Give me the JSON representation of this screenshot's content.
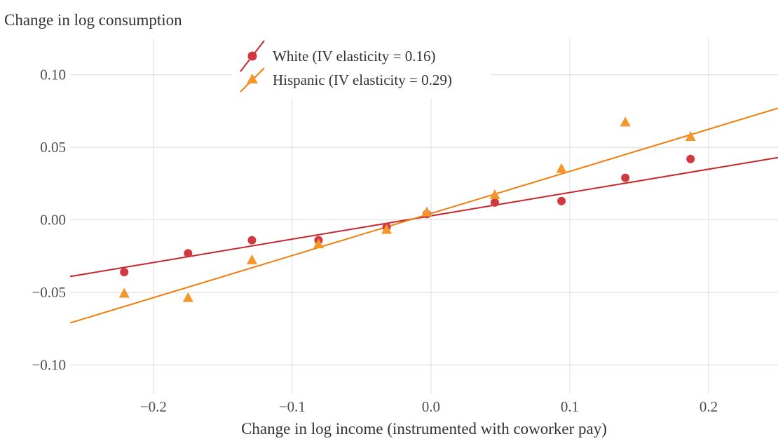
{
  "chart_data": {
    "type": "scatter",
    "title": "",
    "ylabel": "Change in log consumption",
    "xlabel": "Change in log income (instrumented with coworker pay)",
    "xlim": [
      -0.26,
      0.25
    ],
    "ylim": [
      -0.12,
      0.125
    ],
    "xticks": [
      -0.2,
      -0.1,
      0.0,
      0.1,
      0.2
    ],
    "xtick_labels": [
      "−0.2",
      "−0.1",
      "0.0",
      "0.1",
      "0.2"
    ],
    "yticks": [
      0.1,
      0.05,
      0.0,
      -0.05,
      -0.1
    ],
    "ytick_labels": [
      "0.10",
      "0.05",
      "0.00",
      "−0.05",
      "−0.10"
    ],
    "grid": true,
    "legend_position": "top-center",
    "series": [
      {
        "name": "White (IV elasticity = 0.16)",
        "marker": "circle",
        "color": "#d0393f",
        "line_color": "#c8262d",
        "x": [
          -0.221,
          -0.175,
          -0.129,
          -0.081,
          -0.032,
          -0.003,
          0.046,
          0.094,
          0.14,
          0.187
        ],
        "y": [
          -0.036,
          -0.023,
          -0.014,
          -0.014,
          -0.005,
          0.004,
          0.012,
          0.013,
          0.029,
          0.042
        ],
        "fit": {
          "x": [
            -0.26,
            0.25
          ],
          "y": [
            -0.039,
            0.043
          ]
        }
      },
      {
        "name": "Hispanic (IV elasticity = 0.29)",
        "marker": "triangle",
        "color": "#f5962a",
        "line_color": "#f07e0b",
        "x": [
          -0.221,
          -0.175,
          -0.129,
          -0.081,
          -0.032,
          -0.003,
          0.046,
          0.094,
          0.14,
          0.187
        ],
        "y": [
          -0.051,
          -0.054,
          -0.028,
          -0.017,
          -0.007,
          0.005,
          0.017,
          0.035,
          0.067,
          0.057
        ],
        "fit": {
          "x": [
            -0.26,
            0.25
          ],
          "y": [
            -0.071,
            0.077
          ]
        }
      }
    ]
  }
}
